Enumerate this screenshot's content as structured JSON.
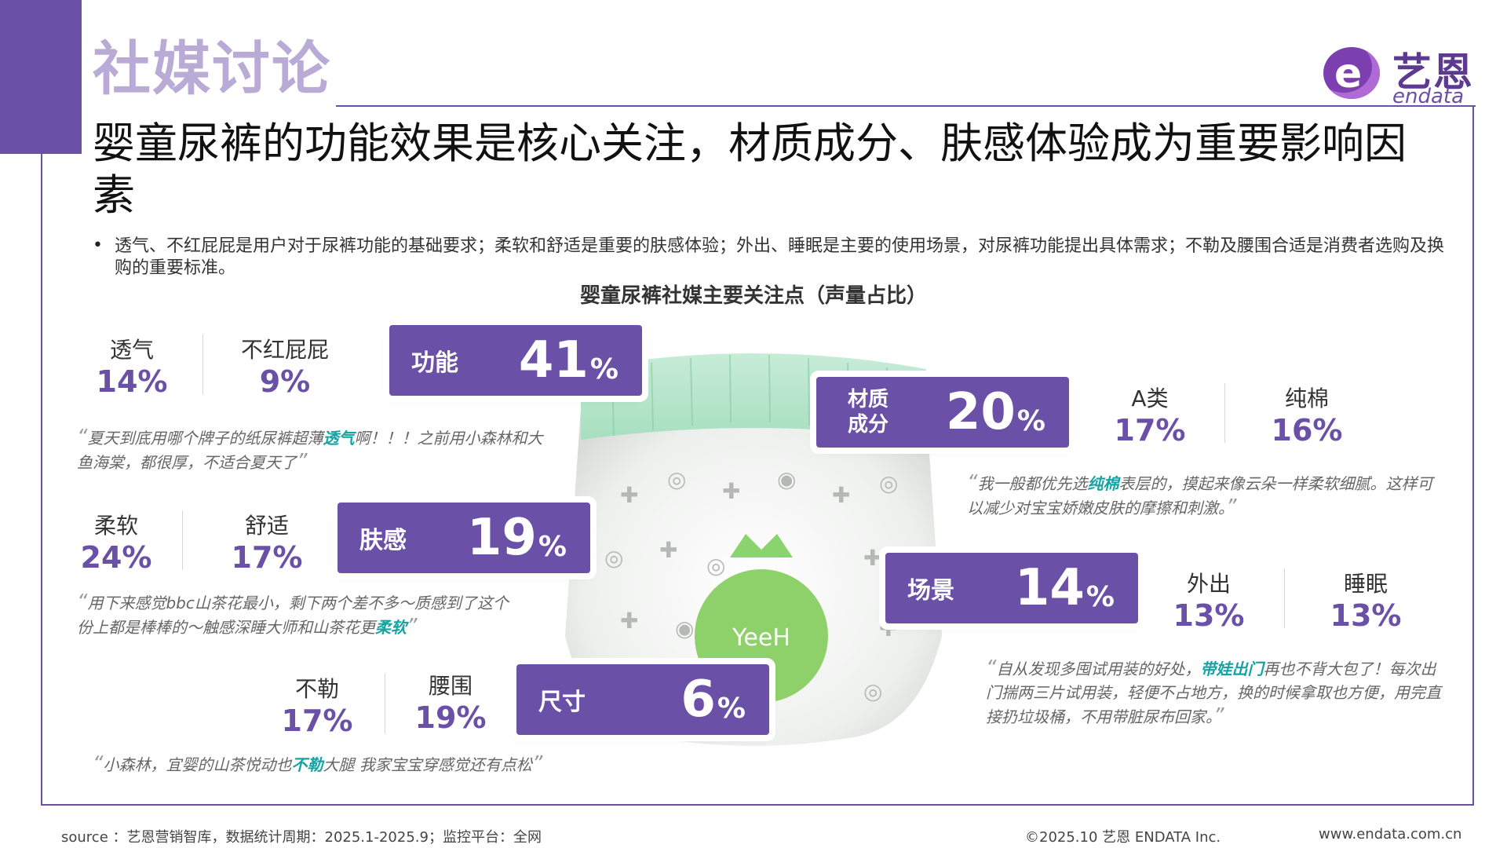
{
  "section_title": "社媒讨论",
  "logo": {
    "cn": "艺恩",
    "en": "endata"
  },
  "headline": "婴童尿裤的功能效果是核心关注，材质成分、肤感体验成为重要影响因素",
  "bullet": "透气、不红屁屁是用户对于尿裤功能的基础要求；柔软和舒适是重要的肤感体验；外出、睡眠是主要的使用场景，对尿裤功能提出具体需求；不勒及腰围合适是消费者选购及换购的重要标准。",
  "chart_title": "婴童尿裤社媒主要关注点（声量占比）",
  "product_brand": "YeeH",
  "colors": {
    "accent": "#6a50a7",
    "highlight": "#15a3a3"
  },
  "groups": {
    "function": {
      "label": "功能",
      "value": "41",
      "unit": "%",
      "subs": [
        {
          "label": "透气",
          "value": "14%"
        },
        {
          "label": "不红屁屁",
          "value": "9%"
        }
      ],
      "quote": {
        "pre": "夏天到底用哪个牌子的纸尿裤超薄",
        "hl": "透气",
        "post": "啊！！！之前用小森林和大鱼海棠，都很厚，不适合夏天了"
      }
    },
    "material": {
      "label": "材质成分",
      "value": "20",
      "unit": "%",
      "subs": [
        {
          "label": "A类",
          "value": "17%"
        },
        {
          "label": "纯棉",
          "value": "16%"
        }
      ],
      "quote": {
        "pre": "我一般都优先选",
        "hl": "纯棉",
        "post": "表层的，摸起来像云朵一样柔软细腻。这样可以减少对宝宝娇嫩皮肤的摩擦和刺激。"
      }
    },
    "skin": {
      "label": "肤感",
      "value": "19",
      "unit": "%",
      "subs": [
        {
          "label": "柔软",
          "value": "24%"
        },
        {
          "label": "舒适",
          "value": "17%"
        }
      ],
      "quote": {
        "pre": "用下来感觉bbc山茶花最小，剩下两个差不多～质感到了这个份上都是棒棒的～触感深睡大师和山茶花更",
        "hl": "柔软",
        "post": ""
      }
    },
    "scene": {
      "label": "场景",
      "value": "14",
      "unit": "%",
      "subs": [
        {
          "label": "外出",
          "value": "13%"
        },
        {
          "label": "睡眠",
          "value": "13%"
        }
      ],
      "quote": {
        "pre": "自从发现多囤试用装的好处，",
        "hl": "带娃出门",
        "post": "再也不背大包了！每次出门揣两三片试用装，轻便不占地方，换的时候拿取也方便，用完直接扔垃圾桶，不用带脏尿布回家。"
      }
    },
    "size": {
      "label": "尺寸",
      "value": "6",
      "unit": "%",
      "subs": [
        {
          "label": "不勒",
          "value": "17%"
        },
        {
          "label": "腰围",
          "value": "19%"
        }
      ],
      "quote": {
        "pre": "小森林，宜婴的山茶悦动也",
        "hl": "不勒",
        "post": "大腿 我家宝宝穿感觉还有点松"
      }
    }
  },
  "footer": {
    "source": "source ：艺恩营销智库，数据统计周期：2025.1-2025.9；监控平台：全网",
    "copyright": "©2025.10  艺恩 ENDATA Inc.",
    "website": "www.endata.com.cn"
  }
}
